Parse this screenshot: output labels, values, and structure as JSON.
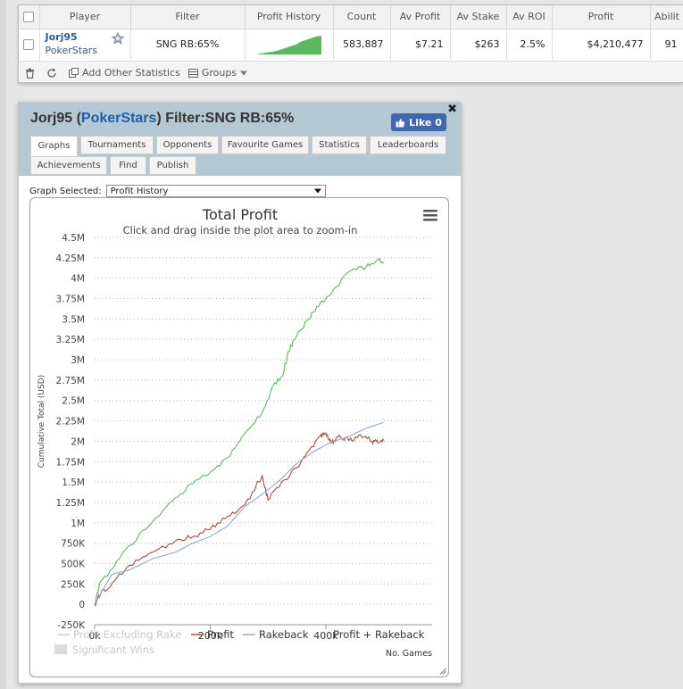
{
  "table": {
    "columns": [
      "Player",
      "Filter",
      "Profit History",
      "Count",
      "Av Profit",
      "Av Stake",
      "Av ROI",
      "Profit",
      "Abilit"
    ],
    "row": {
      "player": "Jorj95",
      "site": "PokerStars",
      "filter": "SNG RB:65%",
      "count": "583,887",
      "av_profit": "$7.21",
      "av_stake": "$263",
      "av_roi": "2.5%",
      "profit": "$4,210,477",
      "ability": "91"
    },
    "toolbar": {
      "add_stats": "Add Other Statistics",
      "groups": "Groups"
    }
  },
  "popup": {
    "player": "Jorj95",
    "open_paren": "(",
    "site": "PokerStars",
    "close_paren": ")",
    "filter": "Filter:SNG RB:65%",
    "close": "✖",
    "like_label": "Like 0",
    "tabs": [
      "Graphs",
      "Tournaments",
      "Opponents",
      "Favourite Games",
      "Statistics",
      "Leaderboards",
      "Achievements",
      "Find",
      "Publish"
    ],
    "active_tab": "Graphs",
    "graph_selected_label": "Graph Selected:",
    "graph_selected_value": "Profit History"
  },
  "colors": {
    "profit_excl_rake": "#5cb85c",
    "profit": "#b04a3e",
    "rakeback": "#8fa8d2",
    "link": "#2c5c9c"
  },
  "chart_data": {
    "type": "line",
    "title": "Total Profit",
    "subtitle": "Click and drag inside the plot area to zoom-in",
    "ylabel": "Cumulative Total (USD)",
    "xlabel": "No. Games",
    "ylim": [
      -250000,
      4500000
    ],
    "xlim": [
      0,
      583887
    ],
    "yticks": [
      {
        "v": 4500000,
        "label": "4.5M"
      },
      {
        "v": 4250000,
        "label": "4.25M"
      },
      {
        "v": 4000000,
        "label": "4M"
      },
      {
        "v": 3750000,
        "label": "3.75M"
      },
      {
        "v": 3500000,
        "label": "3.5M"
      },
      {
        "v": 3250000,
        "label": "3.25M"
      },
      {
        "v": 3000000,
        "label": "3M"
      },
      {
        "v": 2750000,
        "label": "2.75M"
      },
      {
        "v": 2500000,
        "label": "2.5M"
      },
      {
        "v": 2250000,
        "label": "2.25M"
      },
      {
        "v": 2000000,
        "label": "2M"
      },
      {
        "v": 1750000,
        "label": "1.75M"
      },
      {
        "v": 1500000,
        "label": "1.5M"
      },
      {
        "v": 1250000,
        "label": "1.25M"
      },
      {
        "v": 1000000,
        "label": "1M"
      },
      {
        "v": 750000,
        "label": "750K"
      },
      {
        "v": 500000,
        "label": "500K"
      },
      {
        "v": 250000,
        "label": "250K"
      },
      {
        "v": 0,
        "label": "0"
      },
      {
        "v": -250000,
        "label": "-250K"
      }
    ],
    "xticks": [
      {
        "v": 0,
        "label": "0k"
      },
      {
        "v": 200000,
        "label": "200k"
      },
      {
        "v": 400000,
        "label": "400k"
      }
    ],
    "grid": true,
    "legend": [
      "Profit Excluding Rake",
      "Profit",
      "Rakeback",
      "Profit + Rakeback",
      "Significant Wins"
    ],
    "series": [
      {
        "name": "Profit Excluding Rake",
        "color": "#5cb85c",
        "points": [
          [
            0,
            0
          ],
          [
            10000,
            280000
          ],
          [
            30000,
            430000
          ],
          [
            60000,
            720000
          ],
          [
            100000,
            1010000
          ],
          [
            140000,
            1310000
          ],
          [
            170000,
            1480000
          ],
          [
            200000,
            1620000
          ],
          [
            230000,
            1800000
          ],
          [
            260000,
            2100000
          ],
          [
            290000,
            2350000
          ],
          [
            310000,
            2700000
          ],
          [
            325000,
            2800000
          ],
          [
            335000,
            3100000
          ],
          [
            350000,
            3300000
          ],
          [
            370000,
            3500000
          ],
          [
            390000,
            3690000
          ],
          [
            410000,
            3820000
          ],
          [
            440000,
            4080000
          ],
          [
            470000,
            4140000
          ],
          [
            490000,
            4230000
          ],
          [
            500000,
            4200000
          ]
        ]
      },
      {
        "name": "Profit",
        "color": "#b04a3e",
        "points": [
          [
            0,
            0
          ],
          [
            10000,
            120000
          ],
          [
            30000,
            260000
          ],
          [
            60000,
            480000
          ],
          [
            100000,
            640000
          ],
          [
            140000,
            780000
          ],
          [
            170000,
            830000
          ],
          [
            200000,
            920000
          ],
          [
            230000,
            1080000
          ],
          [
            260000,
            1220000
          ],
          [
            290000,
            1580000
          ],
          [
            300000,
            1280000
          ],
          [
            320000,
            1450000
          ],
          [
            350000,
            1680000
          ],
          [
            370000,
            1880000
          ],
          [
            390000,
            2060000
          ],
          [
            400000,
            2100000
          ],
          [
            410000,
            1980000
          ],
          [
            420000,
            2050000
          ],
          [
            440000,
            2010000
          ],
          [
            460000,
            2080000
          ],
          [
            480000,
            2000000
          ],
          [
            490000,
            1980000
          ],
          [
            500000,
            2010000
          ]
        ]
      },
      {
        "name": "Rakeback",
        "color": "#8fa8d2",
        "points": [
          [
            0,
            0
          ],
          [
            30000,
            370000
          ],
          [
            60000,
            420000
          ],
          [
            100000,
            560000
          ],
          [
            140000,
            640000
          ],
          [
            170000,
            750000
          ],
          [
            200000,
            830000
          ],
          [
            230000,
            960000
          ],
          [
            260000,
            1200000
          ],
          [
            290000,
            1350000
          ],
          [
            320000,
            1520000
          ],
          [
            350000,
            1730000
          ],
          [
            380000,
            1880000
          ],
          [
            410000,
            1990000
          ],
          [
            440000,
            2060000
          ],
          [
            470000,
            2160000
          ],
          [
            500000,
            2230000
          ]
        ]
      }
    ]
  }
}
